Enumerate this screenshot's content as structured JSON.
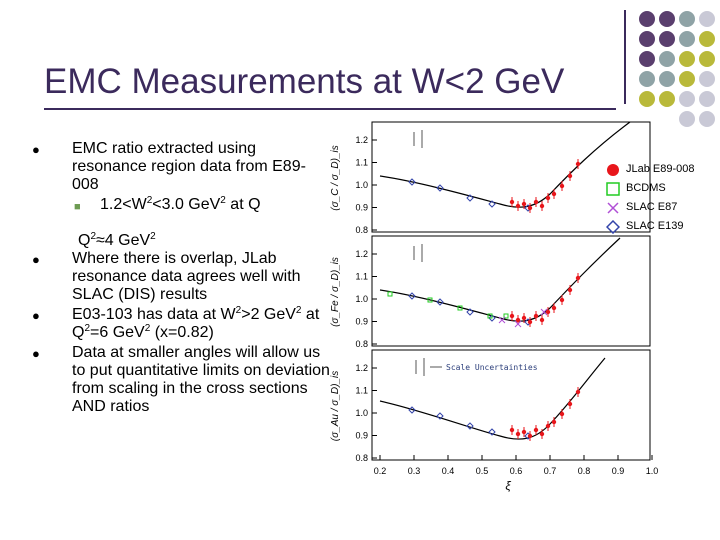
{
  "slide": {
    "title": "EMC Measurements at W<2 GeV",
    "bullet1": "EMC ratio extracted using resonance region data from E89-008",
    "sub1_a": "1.2<W",
    "sub1_b": "2",
    "sub1_c": "<3.0 GeV",
    "sub1_d": "2",
    "sub1_e": " at Q",
    "sub1_f": "2",
    "sub1_g": "≈4 GeV",
    "sub1_h": "2",
    "bullet2": "Where there is overlap, JLab resonance data agrees well with SLAC (DIS) results",
    "b3_a": "E03-103 has data at W",
    "b3_b": "2",
    "b3_c": ">2 GeV",
    "b3_d": "2",
    "b3_e": " at Q",
    "b3_f": "2",
    "b3_g": "=6 GeV",
    "b3_h": "2",
    "b3_i": " (x=0.82)",
    "bullet4": "Data at smaller angles will allow us to put quantitative limits on deviation from scaling in the cross sections AND ratios"
  },
  "legend": {
    "items": [
      "JLab E89-008",
      "BCDMS",
      "SLAC E87",
      "SLAC E139"
    ],
    "colors": {
      "jlab": "#e8161b",
      "bcdms": "#22cc22",
      "slac_e87": "#b04fd6",
      "slac_e139": "#3344aa"
    }
  },
  "figure": {
    "ylabel_c": "(σ_C / σ_D)_is",
    "ylabel_fe": "(σ_Fe / σ_D)_is",
    "ylabel_au": "(σ_Au / σ_D)_is",
    "xaxis_label": "ξ",
    "scale_note": "Scale Uncertainties",
    "y_ticks": [
      "1.2",
      "1.1",
      "1.0",
      "0.9",
      "0.8"
    ],
    "x_ticks": [
      "0.2",
      "0.3",
      "0.4",
      "0.5",
      "0.6",
      "0.7",
      "0.8",
      "0.9",
      "1.0"
    ]
  },
  "decor": {
    "dot_colors": [
      "#5a3f6e",
      "#8fa3a6",
      "#b9b93a",
      "#c9c9d6"
    ]
  }
}
